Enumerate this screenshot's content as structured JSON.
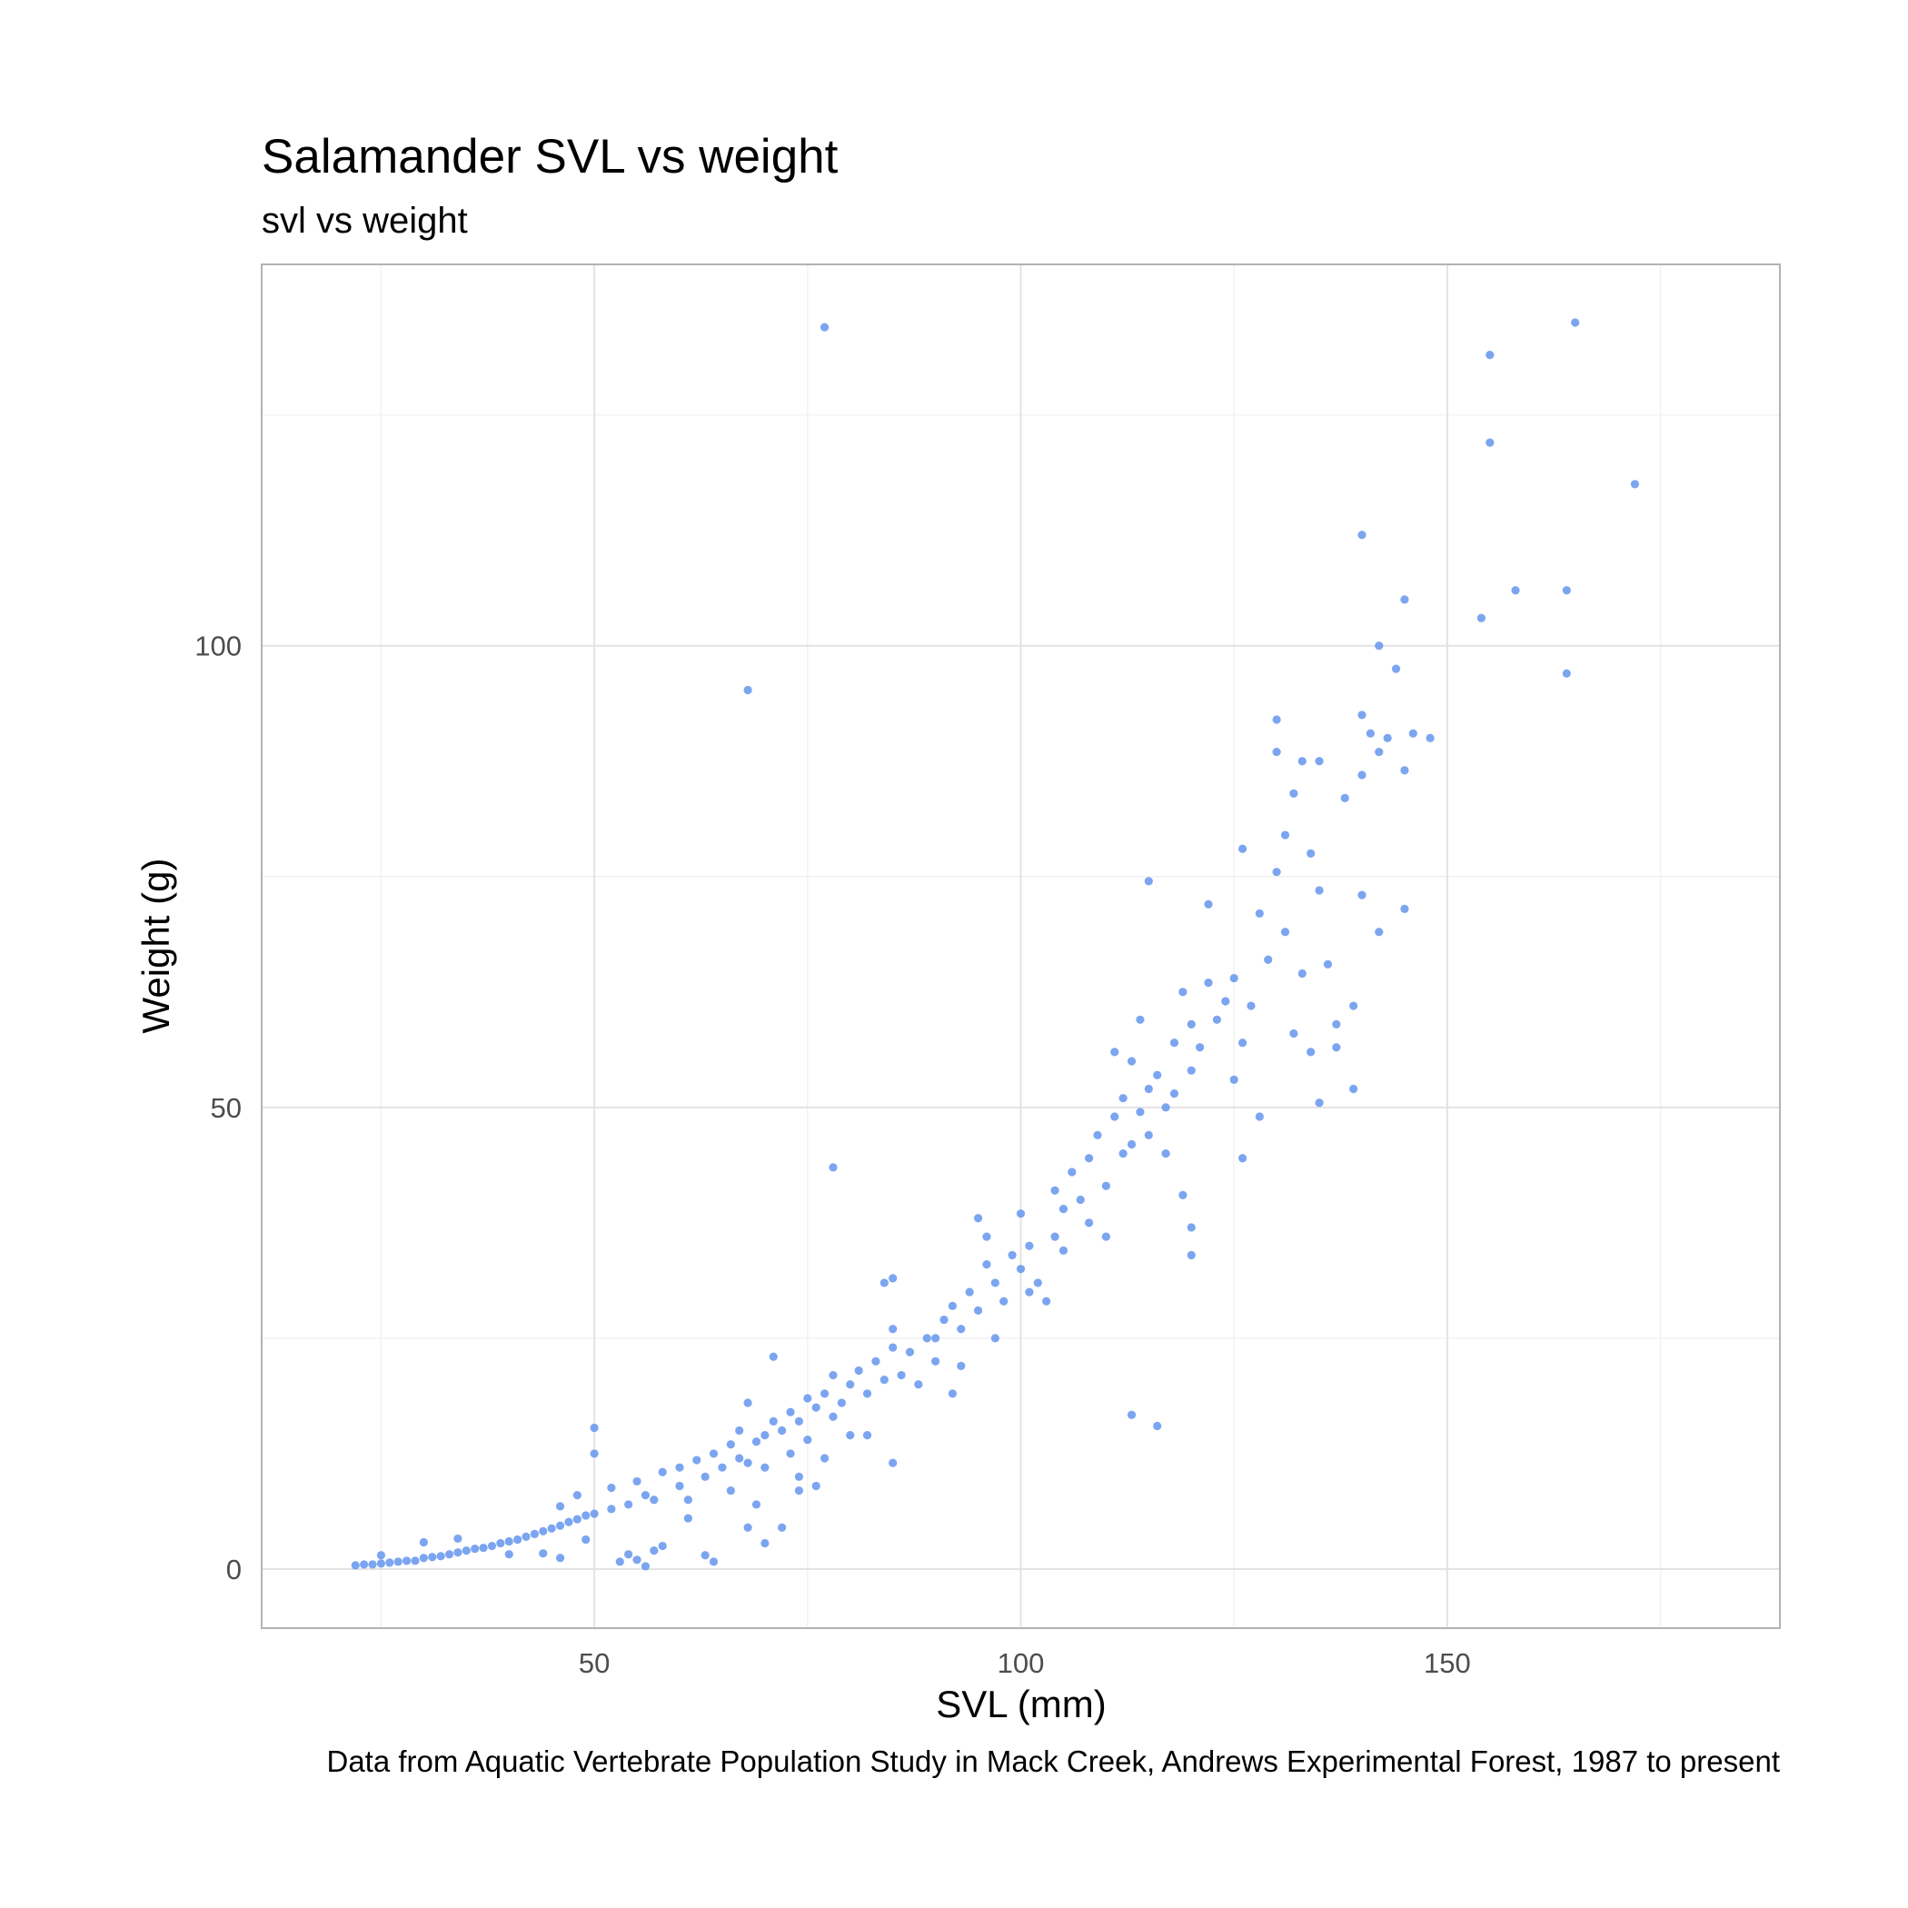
{
  "chart_data": {
    "type": "scatter",
    "title": "Salamander SVL vs weight",
    "subtitle": "svl vs weight",
    "x_label": "SVL (mm)",
    "y_label": "Weight (g)",
    "caption": "Data from Aquatic Vertebrate Population Study in Mack Creek, Andrews Experimental Forest, 1987 to present",
    "xlim": [
      11,
      189
    ],
    "ylim": [
      -6.4,
      141.3
    ],
    "xticks": [
      50,
      100,
      150
    ],
    "yticks": [
      0,
      50,
      100
    ],
    "x_minor_grid": [
      25,
      75,
      125,
      175
    ],
    "y_minor_grid": [
      25,
      75,
      125
    ],
    "grid": true,
    "series": [
      {
        "color": "#6495ed",
        "x": [
          22,
          23,
          24,
          25,
          26,
          27,
          28,
          29,
          30,
          31,
          32,
          33,
          34,
          35,
          36,
          37,
          38,
          39,
          40,
          41,
          42,
          43,
          44,
          45,
          46,
          47,
          48,
          49,
          50,
          50,
          50,
          25,
          30,
          34,
          40,
          44,
          46,
          48,
          49,
          52,
          52,
          54,
          55,
          54,
          55,
          56,
          57,
          58,
          58,
          60,
          60,
          61,
          62,
          63,
          63,
          64,
          64,
          65,
          66,
          67,
          67,
          68,
          68,
          69,
          70,
          70,
          71,
          71,
          72,
          72,
          73,
          73,
          74,
          75,
          75,
          76,
          76,
          77,
          78,
          78,
          79,
          80,
          80,
          81,
          82,
          83,
          84,
          85,
          85,
          84,
          85,
          85,
          86,
          87,
          88,
          89,
          90,
          90,
          91,
          92,
          93,
          93,
          94,
          95,
          95,
          96,
          96,
          97,
          98,
          99,
          100,
          100,
          101,
          101,
          102,
          103,
          104,
          104,
          105,
          105,
          106,
          107,
          108,
          108,
          109,
          110,
          110,
          111,
          111,
          112,
          112,
          113,
          113,
          114,
          114,
          115,
          115,
          116,
          117,
          117,
          118,
          118,
          119,
          120,
          120,
          121,
          122,
          122,
          123,
          124,
          125,
          125,
          126,
          126,
          127,
          128,
          128,
          129,
          130,
          130,
          130,
          131,
          131,
          132,
          132,
          133,
          133,
          134,
          134,
          135,
          135,
          136,
          137,
          138,
          139,
          140,
          140,
          140,
          141,
          142,
          142,
          143,
          145,
          145,
          146,
          148,
          137,
          126,
          57,
          46,
          68,
          69,
          74,
          74,
          77,
          82,
          92,
          97,
          61,
          66,
          77,
          68,
          78,
          113,
          116,
          165,
          155,
          155,
          172,
          140,
          145,
          154,
          158,
          164,
          164,
          142,
          144,
          115,
          139,
          135,
          119,
          120,
          120,
          70,
          56,
          53
        ],
        "values": [
          0.4,
          0.5,
          0.5,
          0.6,
          0.7,
          0.8,
          0.9,
          0.9,
          1.2,
          1.3,
          1.4,
          1.6,
          1.8,
          2.0,
          2.2,
          2.3,
          2.5,
          2.8,
          3.0,
          3.2,
          3.5,
          3.8,
          4.1,
          4.4,
          4.7,
          5.1,
          5.4,
          5.8,
          6.0,
          15.3,
          12.5,
          1.5,
          2.9,
          3.3,
          1.6,
          1.7,
          6.8,
          8.0,
          3.2,
          6.5,
          8.8,
          7.0,
          9.5,
          1.6,
          1.0,
          8.0,
          7.5,
          10.5,
          2.5,
          9.0,
          11.0,
          7.5,
          11.8,
          10.0,
          1.5,
          12.5,
          0.8,
          11.0,
          13.5,
          12.0,
          15.0,
          11.5,
          18.0,
          13.8,
          14.5,
          11.0,
          16.0,
          23.0,
          15.0,
          4.5,
          17.0,
          12.5,
          16.0,
          18.5,
          14.0,
          17.5,
          9.0,
          19.0,
          16.5,
          21.0,
          18.0,
          20.0,
          14.5,
          21.5,
          19.0,
          22.5,
          20.5,
          24.0,
          31.5,
          31.0,
          26.0,
          11.5,
          21.0,
          23.5,
          20.0,
          25.0,
          22.5,
          25.0,
          27.0,
          28.5,
          26.0,
          22.0,
          30.0,
          28.0,
          38.0,
          33.0,
          36.0,
          31.0,
          29.0,
          34.0,
          32.5,
          38.5,
          35.0,
          30.0,
          31.0,
          29.0,
          36.0,
          41.0,
          39.0,
          34.5,
          43.0,
          40.0,
          37.5,
          44.5,
          47.0,
          41.5,
          36.0,
          49.0,
          56.0,
          45.0,
          51.0,
          46.0,
          55.0,
          49.5,
          59.5,
          52.0,
          47.0,
          53.5,
          50.0,
          45.0,
          57.0,
          51.5,
          62.5,
          54.0,
          59.0,
          56.5,
          63.5,
          72.0,
          59.5,
          61.5,
          64.0,
          53.0,
          57.0,
          78.0,
          61.0,
          49.0,
          71.0,
          66.0,
          75.5,
          88.5,
          92.0,
          79.5,
          69.0,
          58.0,
          84.0,
          87.5,
          64.5,
          77.5,
          56.0,
          73.5,
          87.5,
          65.5,
          59.0,
          83.5,
          61.0,
          86.0,
          73.0,
          92.5,
          90.5,
          88.5,
          69.0,
          90.0,
          71.5,
          86.5,
          90.5,
          90.0,
          56.5,
          44.5,
          2.0,
          1.2,
          4.5,
          7.0,
          8.5,
          10.0,
          12.0,
          14.5,
          19.0,
          25.0,
          5.5,
          8.5,
          134.5,
          95.2,
          43.5,
          16.7,
          15.5,
          135.0,
          131.5,
          122.0,
          117.5,
          112.0,
          105.0,
          103.0,
          106.0,
          106.0,
          97.0,
          100.0,
          97.5,
          74.5,
          52.0,
          50.5,
          40.5,
          37.0,
          34.0,
          2.8,
          0.3,
          0.8
        ]
      }
    ]
  }
}
